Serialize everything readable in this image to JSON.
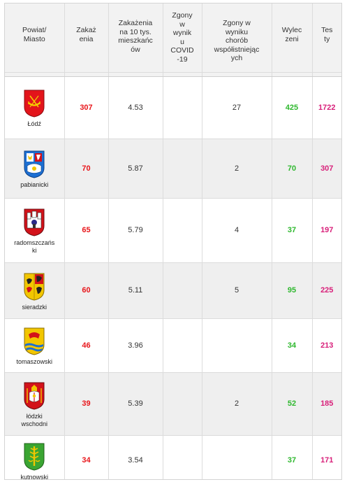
{
  "headers": {
    "powiat": "Powiat/\nMiasto",
    "zakazenia": "Zakaż\nenia",
    "na10": "Zakażenia\nna 10 tys.\nmieszkańc\nów",
    "zgony_covid": "Zgony\nw\nwynik\nu\nCOVID\n-19",
    "zgony_chorob": "Zgony w\nwyniku\nchorób\nwspółistniejąc\nych",
    "wyleczeni": "Wylec\nzeni",
    "testy": "Tes\nty"
  },
  "rows": [
    {
      "name": "Łódź",
      "zakazenia": "307",
      "na10": "4.53",
      "zgony_covid": "",
      "zgony_chorob": "27",
      "wyleczeni": "425",
      "testy": "1722",
      "crest": "lodz-crest-icon"
    },
    {
      "name": "pabianicki",
      "zakazenia": "70",
      "na10": "5.87",
      "zgony_covid": "",
      "zgony_chorob": "2",
      "wyleczeni": "70",
      "testy": "307",
      "crest": "pabianicki-crest-icon"
    },
    {
      "name": "radomszczańs\nki",
      "zakazenia": "65",
      "na10": "5.79",
      "zgony_covid": "",
      "zgony_chorob": "4",
      "wyleczeni": "37",
      "testy": "197",
      "crest": "radomszczanski-crest-icon"
    },
    {
      "name": "sieradzki",
      "zakazenia": "60",
      "na10": "5.11",
      "zgony_covid": "",
      "zgony_chorob": "5",
      "wyleczeni": "95",
      "testy": "225",
      "crest": "sieradzki-crest-icon"
    },
    {
      "name": "tomaszowski",
      "zakazenia": "46",
      "na10": "3.96",
      "zgony_covid": "",
      "zgony_chorob": "",
      "wyleczeni": "34",
      "testy": "213",
      "crest": "tomaszowski-crest-icon"
    },
    {
      "name": "łódzki\nwschodni",
      "zakazenia": "39",
      "na10": "5.39",
      "zgony_covid": "",
      "zgony_chorob": "2",
      "wyleczeni": "52",
      "testy": "185",
      "crest": "lodzki-wschodni-crest-icon"
    },
    {
      "name": "kutnowski",
      "zakazenia": "34",
      "na10": "3.54",
      "zgony_covid": "",
      "zgony_chorob": "",
      "wyleczeni": "37",
      "testy": "171",
      "crest": "kutnowski-crest-icon"
    }
  ],
  "colors": {
    "zakazenia": "#e8161b",
    "wyleczeni": "#2eb82e",
    "testy": "#d8207a",
    "header_bg": "#f2f2f2",
    "row_alt_bg": "#efefef"
  }
}
